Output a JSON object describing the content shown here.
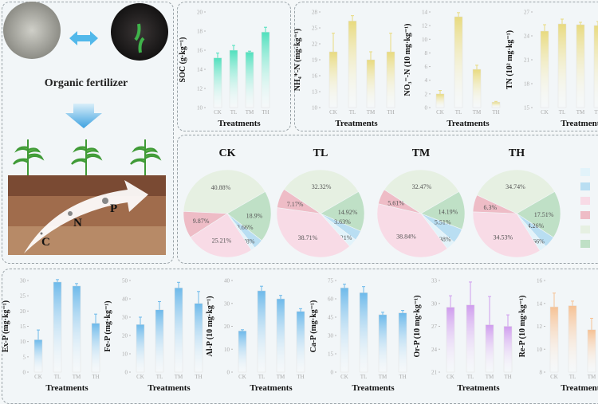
{
  "illustration": {
    "caption": "Organic fertilizer",
    "nutrients": [
      "C",
      "N",
      "P"
    ],
    "icons": [
      "fertilizer-powder-photo",
      "soil-photo",
      "double-arrow-icon",
      "down-arrow-icon",
      "maize-plant-icon",
      "soil-profile",
      "curved-arrow-icon"
    ]
  },
  "chart_data": [
    {
      "type": "bar",
      "id": "soc",
      "ylabel": "SOC (g·kg⁻¹)",
      "xlabel": "Treatments",
      "categories": [
        "CK",
        "TL",
        "TM",
        "TH"
      ],
      "values": [
        15.2,
        16.0,
        15.8,
        17.9
      ],
      "errors": [
        0.5,
        0.5,
        0.1,
        0.5
      ],
      "ylim": [
        10,
        20
      ],
      "ticks": [
        "10",
        "12",
        "14",
        "16",
        "18",
        "20"
      ],
      "color": "#4fe0bd"
    },
    {
      "type": "bar",
      "id": "nh4",
      "ylabel": "NH₄⁺-N (mg·kg⁻¹)",
      "xlabel": "Treatments",
      "categories": [
        "CK",
        "TL",
        "TM",
        "TH"
      ],
      "values": [
        20.5,
        26.3,
        19.0,
        20.5
      ],
      "errors": [
        3.5,
        1.0,
        1.5,
        3.5
      ],
      "ylim": [
        10,
        28
      ],
      "ticks": [
        "10",
        "13",
        "16",
        "19",
        "22",
        "25",
        "28"
      ],
      "color": "#e8da7e"
    },
    {
      "type": "bar",
      "id": "no3",
      "ylabel": "NO₃⁻-N (10 mg·kg⁻¹)",
      "xlabel": "Treatments",
      "categories": [
        "CK",
        "TL",
        "TM",
        "TH"
      ],
      "values": [
        2.0,
        13.3,
        5.6,
        0.8
      ],
      "errors": [
        0.5,
        0.6,
        0.6,
        0.1
      ],
      "ylim": [
        0,
        14
      ],
      "ticks": [
        "0",
        "2",
        "4",
        "6",
        "8",
        "10",
        "12",
        "14"
      ],
      "color": "#e8da7e"
    },
    {
      "type": "bar",
      "id": "tn",
      "ylabel": "TN (10² mg·kg⁻¹)",
      "xlabel": "Treatments",
      "categories": [
        "CK",
        "TL",
        "TM",
        "TH"
      ],
      "values": [
        24.6,
        25.5,
        25.4,
        25.3
      ],
      "errors": [
        0.8,
        0.6,
        0.3,
        0.5
      ],
      "ylim": [
        15,
        27
      ],
      "ticks": [
        "15",
        "18",
        "21",
        "24",
        "27"
      ],
      "color": "#e8da7e"
    },
    {
      "type": "bar",
      "id": "exp",
      "ylabel": "Ex-P (mg·kg⁻¹)",
      "xlabel": "Treatments",
      "categories": [
        "CK",
        "TL",
        "TM",
        "TH"
      ],
      "values": [
        10.6,
        29.5,
        28.2,
        16.0
      ],
      "errors": [
        3.2,
        0.8,
        0.8,
        3.0
      ],
      "ylim": [
        0,
        30
      ],
      "ticks": [
        "0",
        "5",
        "10",
        "15",
        "20",
        "25",
        "30"
      ],
      "color": "#6db9ea"
    },
    {
      "type": "bar",
      "id": "fep",
      "ylabel": "Fe-P (mg·kg⁻¹)",
      "xlabel": "Treatments",
      "categories": [
        "CK",
        "TL",
        "TM",
        "TH"
      ],
      "values": [
        26.0,
        34.0,
        46.0,
        37.5
      ],
      "errors": [
        4.0,
        4.5,
        3.0,
        6.5
      ],
      "ylim": [
        0,
        50
      ],
      "ticks": [
        "0",
        "10",
        "20",
        "30",
        "40",
        "50"
      ],
      "color": "#6db9ea"
    },
    {
      "type": "bar",
      "id": "alp",
      "ylabel": "Al-P (10 mg·kg⁻¹)",
      "xlabel": "Treatments",
      "categories": [
        "CK",
        "TL",
        "TM",
        "TH"
      ],
      "values": [
        18.0,
        35.5,
        32.0,
        26.5
      ],
      "errors": [
        0.5,
        2.0,
        1.5,
        1.2
      ],
      "ylim": [
        0,
        40
      ],
      "ticks": [
        "0",
        "10",
        "20",
        "30",
        "40"
      ],
      "color": "#6db9ea"
    },
    {
      "type": "bar",
      "id": "cap",
      "ylabel": "Ca-P (mg·kg⁻¹)",
      "xlabel": "Treatments",
      "categories": [
        "CK",
        "TL",
        "TM",
        "TH"
      ],
      "values": [
        69.0,
        65.0,
        47.0,
        48.5
      ],
      "errors": [
        3.0,
        5.0,
        2.0,
        2.0
      ],
      "ylim": [
        0,
        75
      ],
      "ticks": [
        "0",
        "15",
        "30",
        "45",
        "60",
        "75"
      ],
      "color": "#6db9ea"
    },
    {
      "type": "bar",
      "id": "orp",
      "ylabel": "Or-P (10 mg·kg⁻¹)",
      "xlabel": "Treatments",
      "categories": [
        "CK",
        "TL",
        "TM",
        "TH"
      ],
      "values": [
        29.5,
        29.8,
        27.2,
        27.0
      ],
      "errors": [
        1.5,
        3.0,
        3.7,
        1.5
      ],
      "ylim": [
        21,
        33
      ],
      "ticks": [
        "21",
        "24",
        "27",
        "30",
        "33"
      ],
      "color": "#cf9cee"
    },
    {
      "type": "bar",
      "id": "rep",
      "ylabel": "Re-P (10 mg·kg⁻¹)",
      "xlabel": "Treatments",
      "categories": [
        "CK",
        "TL",
        "TM",
        "TH"
      ],
      "values": [
        13.7,
        13.8,
        11.7,
        12.0
      ],
      "errors": [
        1.2,
        0.4,
        1.0,
        0.8
      ],
      "ylim": [
        8,
        16
      ],
      "ticks": [
        "8",
        "10",
        "12",
        "14",
        "16"
      ],
      "color": "#f6c194"
    },
    {
      "type": "pie",
      "id": "pies",
      "slice_colors": [
        "#e6f0e2",
        "#bfe0c6",
        "#b9def2",
        "#e2f3fa",
        "#f8dbe6",
        "#eebcc6"
      ],
      "pies": [
        {
          "title": "CK",
          "values": [
            40.88,
            18.9,
            3.66,
            1.48,
            25.21,
            9.87
          ],
          "labels": [
            "40.88%",
            "18.9%",
            "3.66%",
            "1.48%",
            "25.21%",
            "9.87%"
          ]
        },
        {
          "title": "TL",
          "values": [
            32.32,
            14.92,
            3.63,
            3.21,
            38.71,
            7.17
          ],
          "labels": [
            "32.32%",
            "14.92%",
            "3.63%",
            "3.21%",
            "38.71%",
            "7.17%"
          ]
        },
        {
          "title": "TM",
          "values": [
            32.47,
            14.19,
            5.51,
            3.38,
            38.84,
            5.61
          ],
          "labels": [
            "32.47%",
            "14.19%",
            "5.51%",
            "3.38%",
            "38.84%",
            "5.61%"
          ]
        },
        {
          "title": "TH",
          "values": [
            34.74,
            17.51,
            4.26,
            2.66,
            34.53,
            6.3
          ],
          "labels": [
            "34.74%",
            "17.51%",
            "4.26%",
            "2.66%",
            "34.53%",
            "6.3%"
          ]
        }
      ],
      "legend_colors": [
        "#e2f3fa",
        "#b9def2",
        "#f8dbe6",
        "#eebcc6",
        "#e6f0e2",
        "#bfe0c6"
      ]
    }
  ]
}
